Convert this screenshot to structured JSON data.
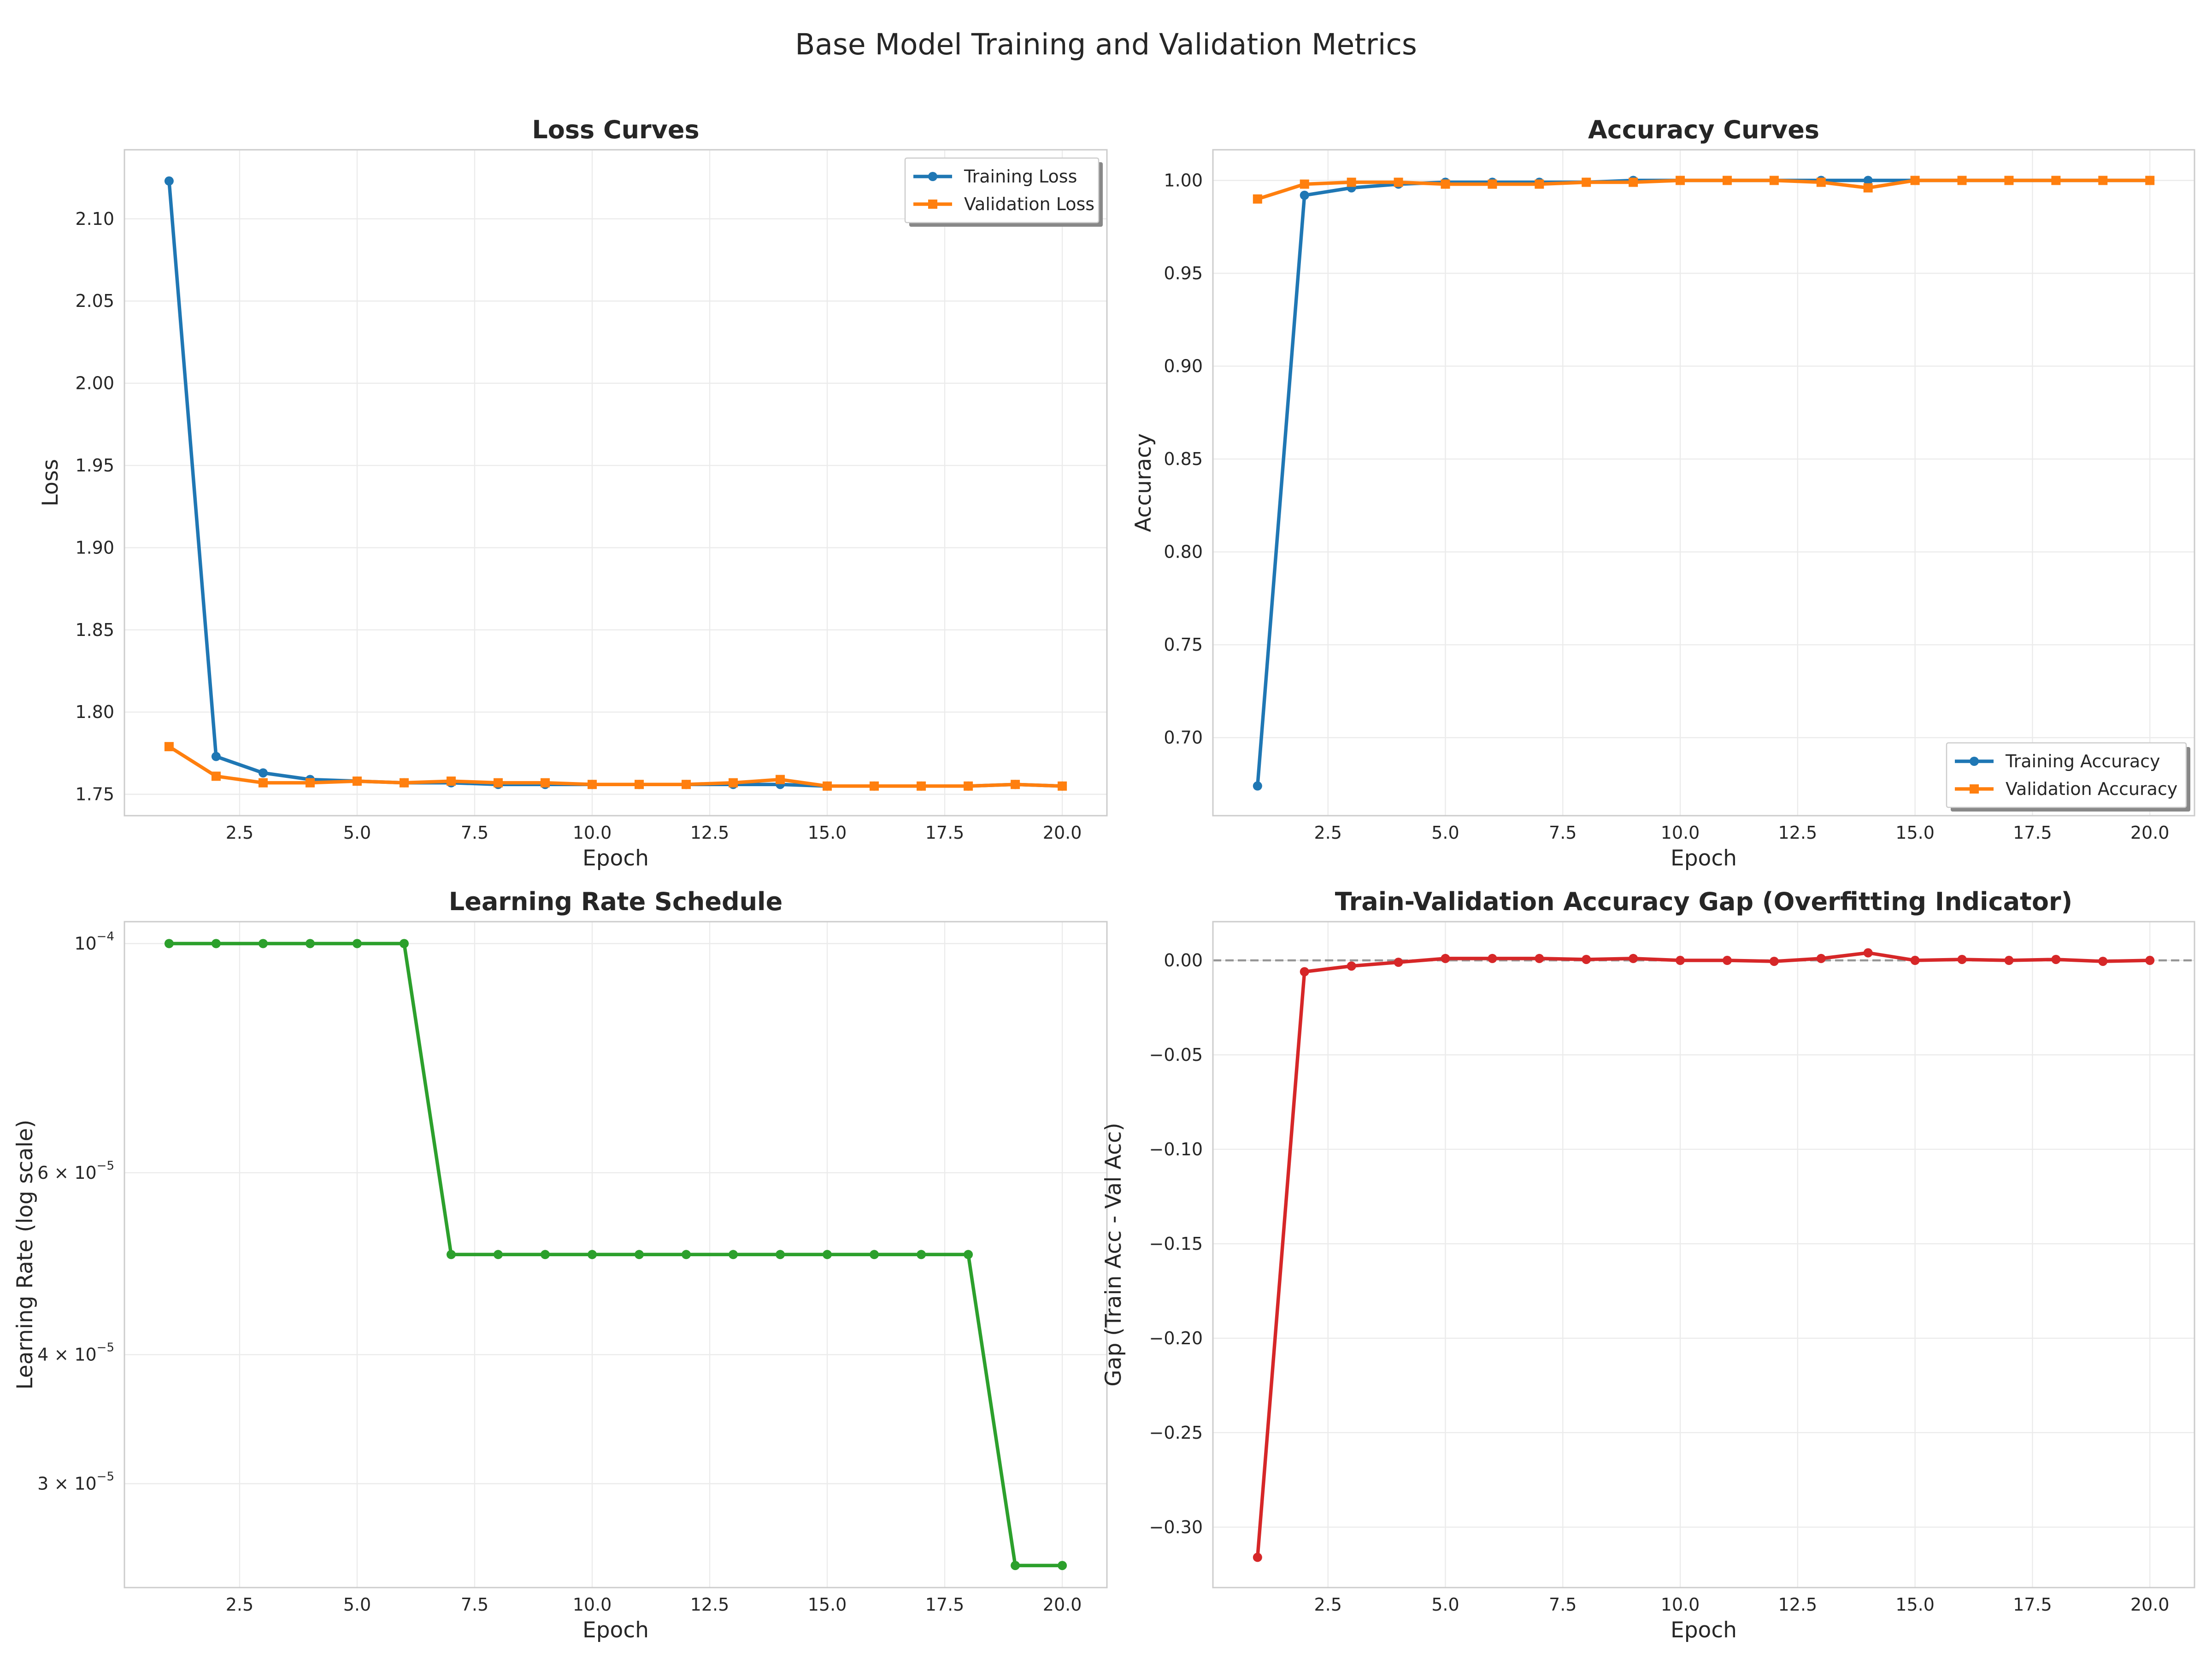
{
  "figure_title": "Base Model Training and Validation Metrics",
  "chart_data": [
    {
      "type": "line",
      "title": "Loss Curves",
      "xlabel": "Epoch",
      "ylabel": "Loss",
      "x": [
        1,
        2,
        3,
        4,
        5,
        6,
        7,
        8,
        9,
        10,
        11,
        12,
        13,
        14,
        15,
        16,
        17,
        18,
        19,
        20
      ],
      "xlim": [
        0.05,
        20.95
      ],
      "ylim": [
        1.737,
        2.142
      ],
      "xticks": [
        2.5,
        5.0,
        7.5,
        10.0,
        12.5,
        15.0,
        17.5,
        20.0
      ],
      "xtick_labels": [
        "2.5",
        "5.0",
        "7.5",
        "10.0",
        "12.5",
        "15.0",
        "17.5",
        "20.0"
      ],
      "yticks": [
        1.75,
        1.8,
        1.85,
        1.9,
        1.95,
        2.0,
        2.05,
        2.1
      ],
      "ytick_labels": [
        "1.75",
        "1.80",
        "1.85",
        "1.90",
        "1.95",
        "2.00",
        "2.05",
        "2.10"
      ],
      "grid": true,
      "legend": "upper-right",
      "series": [
        {
          "name": "Training Loss",
          "color": "#1f77b4",
          "marker": "circle",
          "values": [
            2.123,
            1.773,
            1.763,
            1.759,
            1.758,
            1.757,
            1.757,
            1.756,
            1.756,
            1.756,
            1.756,
            1.756,
            1.756,
            1.756,
            1.755,
            1.755,
            1.755,
            1.755,
            1.756,
            1.755
          ]
        },
        {
          "name": "Validation Loss",
          "color": "#ff7f0e",
          "marker": "square",
          "values": [
            1.779,
            1.761,
            1.757,
            1.757,
            1.758,
            1.757,
            1.758,
            1.757,
            1.757,
            1.756,
            1.756,
            1.756,
            1.757,
            1.759,
            1.755,
            1.755,
            1.755,
            1.755,
            1.756,
            1.755
          ]
        }
      ]
    },
    {
      "type": "line",
      "title": "Accuracy Curves",
      "xlabel": "Epoch",
      "ylabel": "Accuracy",
      "x": [
        1,
        2,
        3,
        4,
        5,
        6,
        7,
        8,
        9,
        10,
        11,
        12,
        13,
        14,
        15,
        16,
        17,
        18,
        19,
        20
      ],
      "xlim": [
        0.05,
        20.95
      ],
      "ylim": [
        0.658,
        1.0165
      ],
      "xticks": [
        2.5,
        5.0,
        7.5,
        10.0,
        12.5,
        15.0,
        17.5,
        20.0
      ],
      "xtick_labels": [
        "2.5",
        "5.0",
        "7.5",
        "10.0",
        "12.5",
        "15.0",
        "17.5",
        "20.0"
      ],
      "yticks": [
        0.7,
        0.75,
        0.8,
        0.85,
        0.9,
        0.95,
        1.0
      ],
      "ytick_labels": [
        "0.70",
        "0.75",
        "0.80",
        "0.85",
        "0.90",
        "0.95",
        "1.00"
      ],
      "grid": true,
      "legend": "lower-right",
      "series": [
        {
          "name": "Training Accuracy",
          "color": "#1f77b4",
          "marker": "circle",
          "values": [
            0.674,
            0.992,
            0.996,
            0.998,
            0.999,
            0.999,
            0.999,
            0.999,
            1.0,
            1.0,
            1.0,
            1.0,
            1.0,
            1.0,
            1.0,
            1.0,
            1.0,
            1.0,
            1.0,
            1.0
          ]
        },
        {
          "name": "Validation Accuracy",
          "color": "#ff7f0e",
          "marker": "square",
          "values": [
            0.99,
            0.998,
            0.999,
            0.999,
            0.998,
            0.998,
            0.998,
            0.999,
            0.999,
            1.0,
            1.0,
            1.0,
            0.999,
            0.996,
            1.0,
            1.0,
            1.0,
            1.0,
            1.0,
            1.0
          ]
        }
      ]
    },
    {
      "type": "line",
      "title": "Learning Rate Schedule",
      "xlabel": "Epoch",
      "ylabel": "Learning Rate (log scale)",
      "yscale": "log",
      "x": [
        1,
        2,
        3,
        4,
        5,
        6,
        7,
        8,
        9,
        10,
        11,
        12,
        13,
        14,
        15,
        16,
        17,
        18,
        19,
        20
      ],
      "xlim": [
        0.05,
        20.95
      ],
      "ylim": [
        2.38e-05,
        0.000105
      ],
      "xticks": [
        2.5,
        5.0,
        7.5,
        10.0,
        12.5,
        15.0,
        17.5,
        20.0
      ],
      "xtick_labels": [
        "2.5",
        "5.0",
        "7.5",
        "10.0",
        "12.5",
        "15.0",
        "17.5",
        "20.0"
      ],
      "yticks": [
        3e-05,
        4e-05,
        6e-05,
        0.0001
      ],
      "ytick_labels": [
        {
          "base": "3 × 10",
          "exp": "−5"
        },
        {
          "base": "4 × 10",
          "exp": "−5"
        },
        {
          "base": "6 × 10",
          "exp": "−5"
        },
        {
          "base": "10",
          "exp": "−4"
        }
      ],
      "grid": true,
      "series": [
        {
          "color": "#2ca02c",
          "marker": "circle",
          "values": [
            0.0001,
            0.0001,
            0.0001,
            0.0001,
            0.0001,
            0.0001,
            5e-05,
            5e-05,
            5e-05,
            5e-05,
            5e-05,
            5e-05,
            5e-05,
            5e-05,
            5e-05,
            5e-05,
            5e-05,
            5e-05,
            2.5e-05,
            2.5e-05
          ]
        }
      ]
    },
    {
      "type": "line",
      "title": "Train-Validation Accuracy Gap (Overfitting Indicator)",
      "xlabel": "Epoch",
      "ylabel": "Gap (Train Acc - Val Acc)",
      "x": [
        1,
        2,
        3,
        4,
        5,
        6,
        7,
        8,
        9,
        10,
        11,
        12,
        13,
        14,
        15,
        16,
        17,
        18,
        19,
        20
      ],
      "xlim": [
        0.05,
        20.95
      ],
      "ylim": [
        -0.332,
        0.0205
      ],
      "xticks": [
        2.5,
        5.0,
        7.5,
        10.0,
        12.5,
        15.0,
        17.5,
        20.0
      ],
      "xtick_labels": [
        "2.5",
        "5.0",
        "7.5",
        "10.0",
        "12.5",
        "15.0",
        "17.5",
        "20.0"
      ],
      "yticks": [
        -0.3,
        -0.25,
        -0.2,
        -0.15,
        -0.1,
        -0.05,
        0.0
      ],
      "ytick_labels": [
        "−0.30",
        "−0.25",
        "−0.20",
        "−0.15",
        "−0.10",
        "−0.05",
        "0.00"
      ],
      "grid": true,
      "reference_line": {
        "y": 0,
        "style": "dashed",
        "color": "#808080"
      },
      "series": [
        {
          "color": "#d62728",
          "marker": "circle",
          "values": [
            -0.316,
            -0.006,
            -0.003,
            -0.001,
            0.001,
            0.001,
            0.001,
            0.0005,
            0.001,
            0.0,
            0.0,
            -0.0005,
            0.001,
            0.004,
            0.0,
            0.0005,
            0.0,
            0.0005,
            -0.0005,
            0.0
          ]
        }
      ]
    }
  ]
}
